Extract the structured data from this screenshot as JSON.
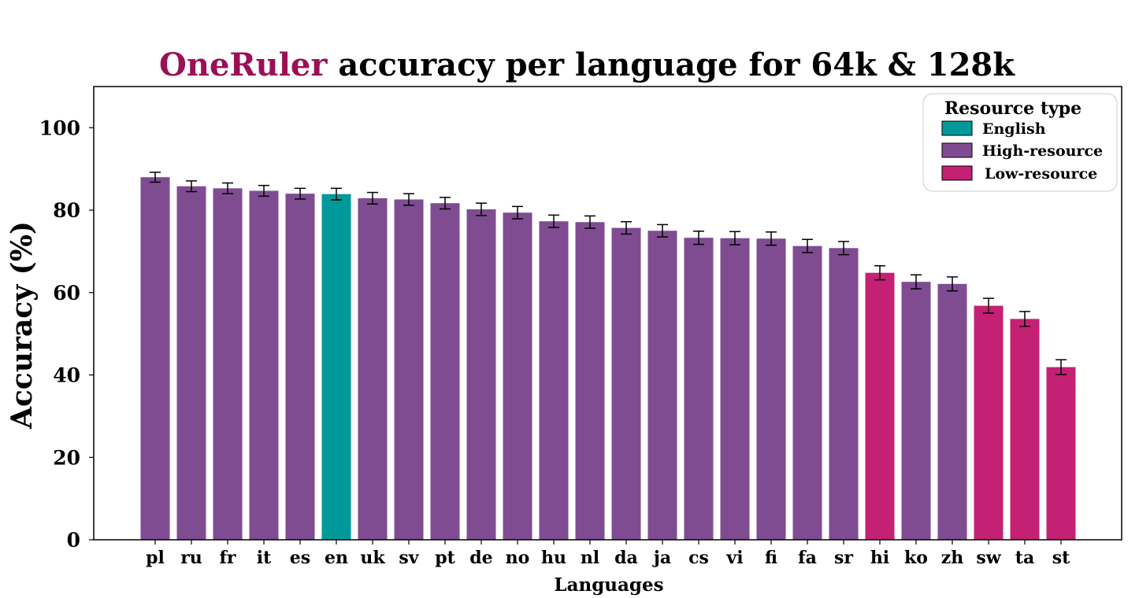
{
  "chart_data": {
    "type": "bar",
    "title_highlight": "OneRuler",
    "title_rest": " accuracy per language for 64k & 128k",
    "xlabel": "Languages",
    "ylabel": "Accuracy (%)",
    "ylim": [
      0,
      110
    ],
    "yticks": [
      0,
      20,
      40,
      60,
      80,
      100
    ],
    "grid": false,
    "legend": {
      "title": "Resource type",
      "placement": "top-right",
      "entries": [
        {
          "key": "english",
          "label": "English"
        },
        {
          "key": "high",
          "label": "High-resource"
        },
        {
          "key": "low",
          "label": "Low-resource"
        }
      ]
    },
    "categories": [
      "pl",
      "ru",
      "fr",
      "it",
      "es",
      "en",
      "uk",
      "sv",
      "pt",
      "de",
      "no",
      "hu",
      "nl",
      "da",
      "ja",
      "cs",
      "vi",
      "fi",
      "fa",
      "sr",
      "hi",
      "ko",
      "zh",
      "sw",
      "ta",
      "st"
    ],
    "values": [
      88.0,
      85.8,
      85.3,
      84.7,
      84.0,
      83.9,
      82.9,
      82.6,
      81.7,
      80.2,
      79.4,
      77.3,
      77.1,
      75.7,
      75.0,
      73.3,
      73.2,
      73.1,
      71.3,
      70.8,
      64.8,
      62.6,
      62.1,
      56.8,
      53.6,
      41.9
    ],
    "error": [
      1.2,
      1.3,
      1.3,
      1.3,
      1.3,
      1.4,
      1.4,
      1.4,
      1.4,
      1.5,
      1.5,
      1.5,
      1.5,
      1.5,
      1.5,
      1.6,
      1.6,
      1.6,
      1.6,
      1.6,
      1.7,
      1.7,
      1.7,
      1.8,
      1.8,
      1.8
    ],
    "groups": [
      "high",
      "high",
      "high",
      "high",
      "high",
      "english",
      "high",
      "high",
      "high",
      "high",
      "high",
      "high",
      "high",
      "high",
      "high",
      "high",
      "high",
      "high",
      "high",
      "high",
      "low",
      "high",
      "high",
      "low",
      "low",
      "low"
    ]
  },
  "colors": {
    "english": "#00999a",
    "high": "#7f4c91",
    "low": "#c42174",
    "title_highlight": "#9b0f55",
    "text": "#000000"
  }
}
